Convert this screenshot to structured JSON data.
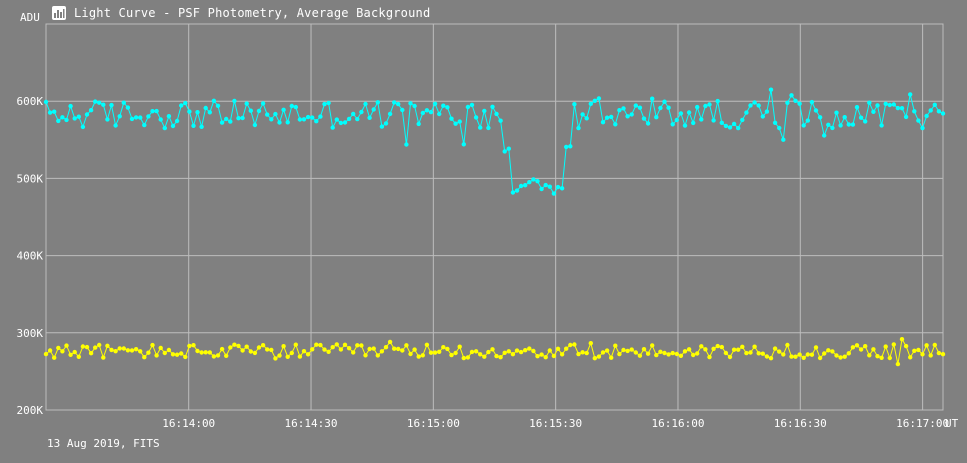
{
  "window": {
    "title": "Light Curve - PSF Photometry, Average Background"
  },
  "footer": {
    "text": "13 Aug 2019, FITS"
  },
  "colors": {
    "background": "#808080",
    "grid": "#bdbdbd",
    "target": "#00ffff",
    "background_series": "#ffff00"
  },
  "chart_data": {
    "type": "line",
    "title": "Light Curve - PSF Photometry, Average Background",
    "ylabel": "ADU",
    "xlabel": "UT",
    "ylim": [
      200000,
      700000
    ],
    "xlim": [
      "16:13:25",
      "16:17:05"
    ],
    "y_ticks": [
      {
        "value": 200000,
        "label": "200K"
      },
      {
        "value": 300000,
        "label": "300K"
      },
      {
        "value": 400000,
        "label": "400K"
      },
      {
        "value": 500000,
        "label": "500K"
      },
      {
        "value": 600000,
        "label": "600K"
      }
    ],
    "x_ticks": [
      "16:14:00",
      "16:14:30",
      "16:15:00",
      "16:15:30",
      "16:16:00",
      "16:16:30",
      "16:17:00"
    ],
    "grid": true,
    "series": [
      {
        "color": "#00ffff",
        "baseline": 583000,
        "jitter": 18000,
        "dip": {
          "start": "16:15:19",
          "end": "16:15:32",
          "value": 490000
        },
        "samples": 220
      },
      {
        "color": "#ffff00",
        "baseline": 276000,
        "jitter": 9000,
        "samples": 220
      }
    ]
  }
}
